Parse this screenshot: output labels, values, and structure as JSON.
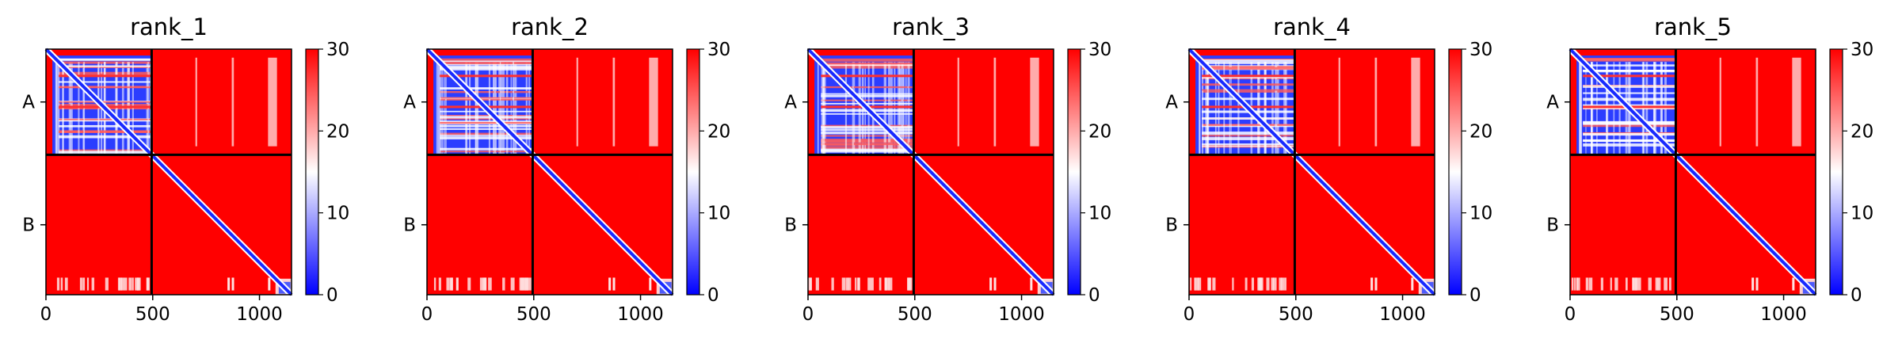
{
  "chart_data": {
    "type": "heatmap",
    "description_free": true,
    "colormap": {
      "name": "bwr",
      "low_color": "#0000ff",
      "mid_color": "#ffffff",
      "high_color": "#ff0000",
      "vmin": 0,
      "vmax": 30,
      "ticks": [
        0,
        10,
        20,
        30
      ]
    },
    "x_range": [
      0,
      1150
    ],
    "y_range": [
      0,
      1150
    ],
    "x_ticks": [
      0,
      500,
      1000
    ],
    "chain_boundary": 495,
    "chains": [
      {
        "label": "A",
        "start": 0,
        "end": 495
      },
      {
        "label": "B",
        "start": 495,
        "end": 1150
      }
    ],
    "panels": [
      {
        "title": "rank_1"
      },
      {
        "title": "rank_2"
      },
      {
        "title": "rank_3"
      },
      {
        "title": "rank_4"
      },
      {
        "title": "rank_5"
      }
    ]
  }
}
